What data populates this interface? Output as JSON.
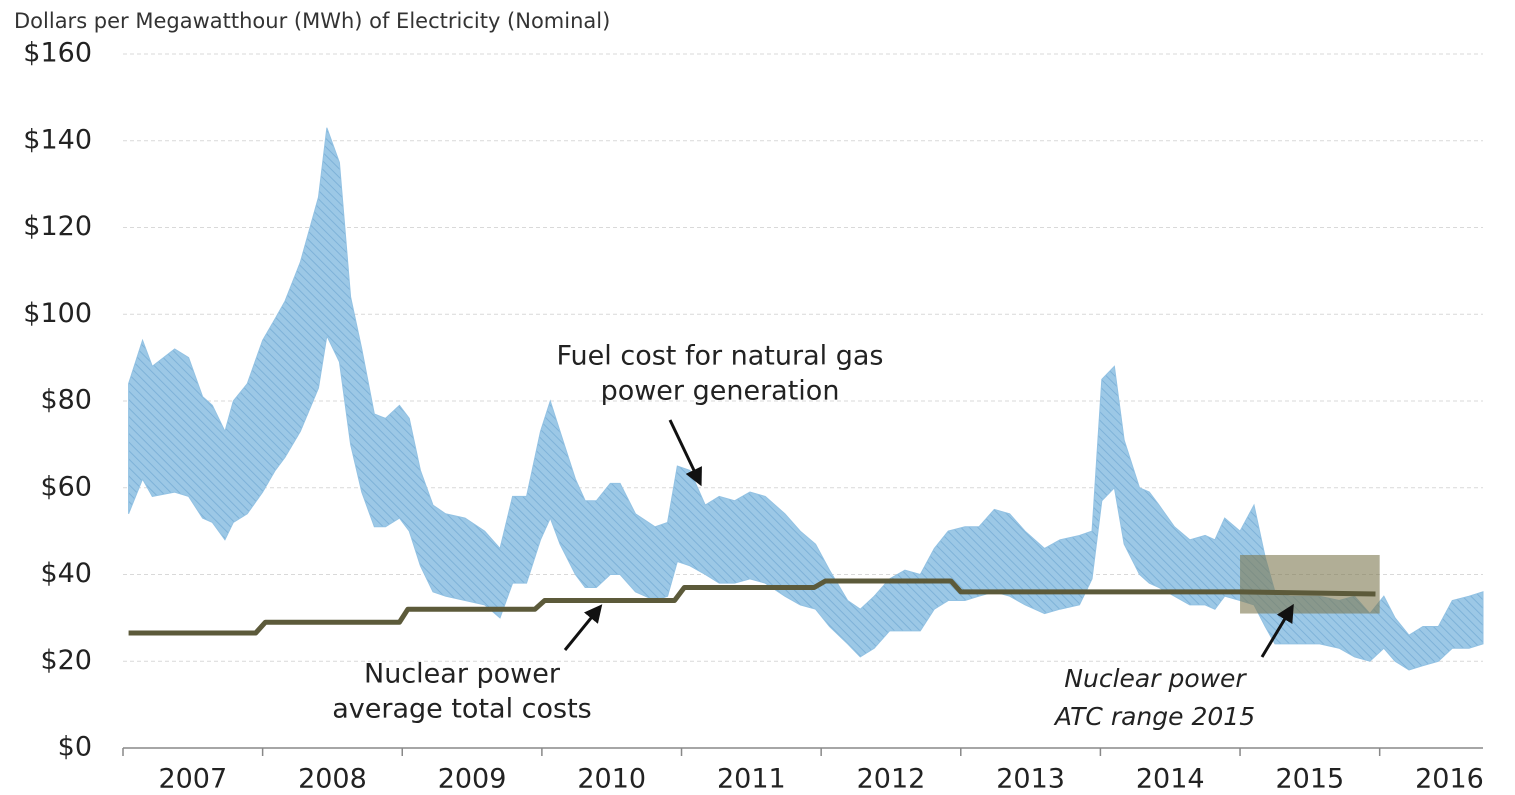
{
  "chart_data": {
    "type": "band",
    "title": "Dollars per Megawatthour (MWh) of Electricity (Nominal)",
    "xlim": [
      2007,
      2016.74
    ],
    "xticks": [
      2007,
      2008,
      2009,
      2010,
      2011,
      2012,
      2013,
      2014,
      2015,
      2016
    ],
    "ylim": [
      0,
      160
    ],
    "yticks": [
      {
        "value": 0,
        "label": "$0"
      },
      {
        "value": 20,
        "label": "$20"
      },
      {
        "value": 40,
        "label": "$40"
      },
      {
        "value": 60,
        "label": "$60"
      },
      {
        "value": 80,
        "label": "$80"
      },
      {
        "value": 100,
        "label": "$100"
      },
      {
        "value": 120,
        "label": "$120"
      },
      {
        "value": 140,
        "label": "$140"
      },
      {
        "value": 160,
        "label": "$160"
      }
    ],
    "grid": true,
    "band": {
      "color": "#93c2e3",
      "x": [
        2007.04,
        2007.14,
        2007.21,
        2007.37,
        2007.47,
        2007.57,
        2007.64,
        2007.73,
        2007.79,
        2007.89,
        2008.0,
        2008.09,
        2008.16,
        2008.27,
        2008.4,
        2008.46,
        2008.55,
        2008.63,
        2008.71,
        2008.8,
        2008.88,
        2008.98,
        2009.05,
        2009.13,
        2009.22,
        2009.31,
        2009.45,
        2009.59,
        2009.7,
        2009.79,
        2009.89,
        2009.99,
        2010.06,
        2010.13,
        2010.24,
        2010.31,
        2010.39,
        2010.49,
        2010.56,
        2010.67,
        2010.81,
        2010.9,
        2010.97,
        2011.06,
        2011.17,
        2011.27,
        2011.38,
        2011.49,
        2011.6,
        2011.74,
        2011.85,
        2011.96,
        2012.06,
        2012.19,
        2012.28,
        2012.38,
        2012.49,
        2012.6,
        2012.71,
        2012.81,
        2012.91,
        2013.03,
        2013.13,
        2013.24,
        2013.35,
        2013.46,
        2013.6,
        2013.71,
        2013.85,
        2013.94,
        2014.01,
        2014.1,
        2014.17,
        2014.28,
        2014.35,
        2014.42,
        2014.53,
        2014.64,
        2014.75,
        2014.82,
        2014.89,
        2015.0,
        2015.1,
        2015.18,
        2015.25,
        2015.36,
        2015.46,
        2015.57,
        2015.71,
        2015.82,
        2015.93,
        2016.03,
        2016.11,
        2016.21,
        2016.31,
        2016.42,
        2016.52,
        2016.64,
        2016.74
      ],
      "high": [
        84,
        94,
        88,
        92,
        90,
        81,
        79,
        73,
        80,
        84,
        94,
        99,
        103,
        112,
        127,
        143,
        135,
        104,
        92,
        77,
        76,
        79,
        76,
        64,
        56,
        54,
        53,
        50,
        46,
        58,
        58,
        73,
        80,
        73,
        62,
        57,
        57,
        61,
        61,
        54,
        51,
        52,
        65,
        64,
        56,
        58,
        57,
        59,
        58,
        54,
        50,
        47,
        41,
        34,
        32,
        35,
        39,
        41,
        40,
        46,
        50,
        51,
        51,
        55,
        54,
        50,
        46,
        48,
        49,
        50,
        85,
        88,
        71,
        60,
        59,
        56,
        51,
        48,
        49,
        48,
        53,
        50,
        56,
        44,
        36,
        35,
        35,
        35,
        34,
        35,
        31,
        35,
        30,
        26,
        28,
        28,
        34,
        35,
        36
      ],
      "low": [
        54,
        62,
        58,
        59,
        58,
        53,
        52,
        48,
        52,
        54,
        59,
        64,
        67,
        73,
        83,
        95,
        89,
        70,
        59,
        51,
        51,
        53,
        50,
        42,
        36,
        35,
        34,
        33,
        30,
        38,
        38,
        48,
        53,
        47,
        40,
        37,
        37,
        40,
        40,
        36,
        34,
        35,
        43,
        42,
        40,
        38,
        38,
        39,
        38,
        35,
        33,
        32,
        28,
        24,
        21,
        23,
        27,
        27,
        27,
        32,
        34,
        34,
        35,
        36,
        35,
        33,
        31,
        32,
        33,
        39,
        57,
        60,
        47,
        40,
        38,
        37,
        35,
        33,
        33,
        32,
        35,
        34,
        33,
        28,
        24,
        24,
        24,
        24,
        23,
        21,
        20,
        23,
        20,
        18,
        19,
        20,
        23,
        23,
        24
      ]
    },
    "nuclear": {
      "color": "#5c5a3a",
      "x": [
        2007.04,
        2007.95,
        2008.02,
        2008.98,
        2009.04,
        2009.95,
        2010.02,
        2010.95,
        2011.02,
        2011.95,
        2012.03,
        2012.93,
        2013.0,
        2015.0,
        2015.97
      ],
      "values": [
        26.5,
        26.5,
        29,
        29,
        32,
        32,
        34,
        34,
        37,
        37,
        38.5,
        38.5,
        36,
        36,
        35.5
      ]
    },
    "atc_range": {
      "color": "#7d7850",
      "xlim": [
        2015.0,
        2016.0
      ],
      "ylim": [
        31,
        44.5
      ]
    },
    "annotations": [
      {
        "lines": [
          "Fuel cost for natural gas",
          "power generation"
        ]
      },
      {
        "lines": [
          "Nuclear power",
          "average total costs"
        ]
      },
      {
        "lines": [
          "Nuclear power",
          "ATC range 2015"
        ]
      }
    ]
  }
}
